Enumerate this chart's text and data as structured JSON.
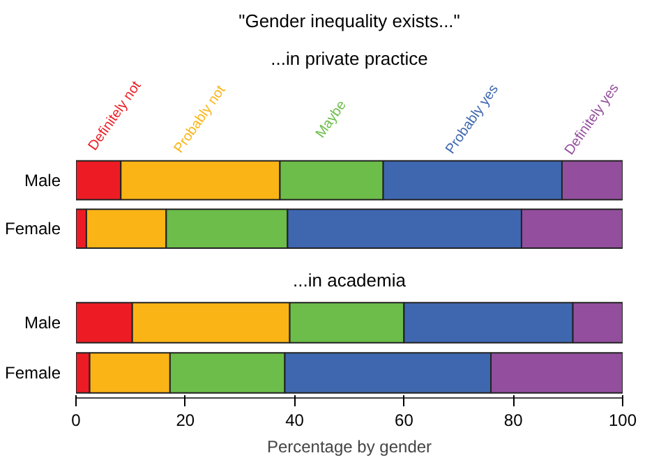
{
  "chart_data": [
    {
      "type": "bar",
      "orientation": "horizontal",
      "stacked": true,
      "title": "\"Gender inequality exists...\"",
      "subtitle": "...in private practice",
      "categories": [
        "Male",
        "Female"
      ],
      "xlim": [
        0,
        100
      ],
      "tick_labels": "y",
      "series": [
        {
          "name": "Definitely not",
          "color": "#ed1c24",
          "values": [
            8.2,
            1.9
          ]
        },
        {
          "name": "Probably not",
          "color": "#fbb416",
          "values": [
            29.1,
            14.6
          ]
        },
        {
          "name": "Maybe",
          "color": "#6cbd4a",
          "values": [
            18.9,
            22.2
          ]
        },
        {
          "name": "Probably yes",
          "color": "#3f67b0",
          "values": [
            32.7,
            42.8
          ]
        },
        {
          "name": "Definitely yes",
          "color": "#934f9d",
          "values": [
            11.1,
            18.5
          ]
        }
      ]
    },
    {
      "type": "bar",
      "orientation": "horizontal",
      "stacked": true,
      "title": "...in academia",
      "xlabel": "Percentage by gender",
      "categories": [
        "Male",
        "Female"
      ],
      "xlim": [
        0,
        100
      ],
      "xticks": [
        0,
        20,
        40,
        60,
        80,
        100
      ],
      "series": [
        {
          "color": "#ed1c24",
          "values": [
            10.3,
            2.5
          ]
        },
        {
          "color": "#fbb416",
          "values": [
            28.8,
            14.7
          ]
        },
        {
          "color": "#6cbd4a",
          "values": [
            20.9,
            21.0
          ]
        },
        {
          "color": "#3f67b0",
          "values": [
            30.9,
            37.7
          ]
        },
        {
          "color": "#934f9d",
          "values": [
            9.1,
            24.1
          ]
        }
      ]
    }
  ]
}
